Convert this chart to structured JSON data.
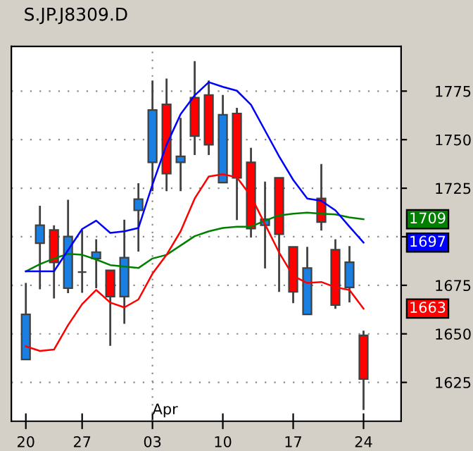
{
  "chart_data": {
    "type": "candlestick",
    "title": "S.JP.J8309.D",
    "categories": [
      "20",
      null,
      null,
      null,
      "27",
      null,
      null,
      null,
      null,
      "03",
      null,
      null,
      null,
      null,
      "10",
      null,
      null,
      null,
      null,
      "17",
      null,
      null,
      null,
      null,
      "24"
    ],
    "ohlc": [
      [
        1636.8,
        1676.2,
        1636.8,
        1660
      ],
      [
        1696.7,
        1716,
        1673,
        1705.9
      ],
      [
        1703.5,
        1705.9,
        1668.2,
        1686.8
      ],
      [
        1673.5,
        1719,
        1671,
        1700.1
      ],
      [
        1681.8,
        1703.5,
        1671.1,
        1681.8
      ],
      [
        1688.8,
        1698.7,
        1673.5,
        1692.1
      ],
      [
        1682.7,
        1682.7,
        1643.8,
        1669.2
      ],
      [
        1669.2,
        1708.8,
        1655.2,
        1689.2
      ],
      [
        1713.6,
        1727.6,
        1692.4,
        1719.4
      ],
      [
        1738.3,
        1780.5,
        1723.5,
        1765.3
      ],
      [
        1768.2,
        1781.5,
        1723.5,
        1732.5
      ],
      [
        1738.3,
        1761.2,
        1723.5,
        1741.4
      ],
      [
        1771.6,
        1790.4,
        1742.1,
        1751.8
      ],
      [
        1773,
        1780.5,
        1742.1,
        1747.4
      ],
      [
        1727.9,
        1773,
        1727.9,
        1762.8
      ],
      [
        1763.5,
        1766.4,
        1708.6,
        1730.3
      ],
      [
        1738.3,
        1745.8,
        1699.6,
        1704.2
      ],
      [
        1705.9,
        1728.4,
        1683.7,
        1709
      ],
      [
        1730.3,
        1730.3,
        1671.6,
        1701.3
      ],
      [
        1694.8,
        1694.8,
        1665.8,
        1671.6
      ],
      [
        1660,
        1694.8,
        1660,
        1683.9
      ],
      [
        1719.7,
        1737.5,
        1703.2,
        1707.6
      ],
      [
        1693.3,
        1698.7,
        1662.9,
        1664.8
      ],
      [
        1673.9,
        1695.2,
        1666.2,
        1686.9
      ],
      [
        1649.2,
        1651.6,
        1610.8,
        1626.7
      ]
    ],
    "colors": [
      "#1a7fe0",
      "#1a7fe0",
      "#ff0000",
      "#1a7fe0",
      "#404040",
      "#1a7fe0",
      "#ff0000",
      "#1a7fe0",
      "#1a7fe0",
      "#1a7fe0",
      "#ff0000",
      "#1a7fe0",
      "#ff0000",
      "#ff0000",
      "#1a7fe0",
      "#ff0000",
      "#ff0000",
      "#1a7fe0",
      "#ff0000",
      "#ff0000",
      "#1a7fe0",
      "#ff0000",
      "#ff0000",
      "#1a7fe0",
      "#ff0000"
    ],
    "series": [
      {
        "type": "line",
        "color": "#008000",
        "values": [
          1682.2,
          1685.9,
          1688.8,
          1691.2,
          1690.7,
          1688.3,
          1685.4,
          1684.7,
          1683.9,
          1688.8,
          1690.7,
          1695.5,
          1700.3,
          1702.8,
          1704.5,
          1705.2,
          1705.2,
          1708.3,
          1711,
          1711.9,
          1712.4,
          1711.9,
          1711.5,
          1710,
          1709
        ]
      },
      {
        "type": "line",
        "color": "#0000ff",
        "values": [
          1682.2,
          1682.2,
          1682.2,
          1693.1,
          1704,
          1708.3,
          1702,
          1702.8,
          1704.5,
          1726.9,
          1747.4,
          1763.1,
          1772.8,
          1779.6,
          1777.2,
          1775.2,
          1768,
          1754.7,
          1741.4,
          1729.3,
          1719.7,
          1718.5,
          1713.6,
          1705.2,
          1697
        ]
      },
      {
        "type": "line",
        "color": "#ff0000",
        "values": [
          1643.6,
          1641.2,
          1641.9,
          1654.5,
          1665.3,
          1672.6,
          1666.1,
          1663.6,
          1667.7,
          1681,
          1690.7,
          1702.8,
          1719.7,
          1731,
          1732.2,
          1730.6,
          1720.9,
          1706.4,
          1691.9,
          1679.8,
          1676.2,
          1676.7,
          1674,
          1672.6,
          1663
        ]
      }
    ],
    "ylim": [
      1605,
      1798
    ],
    "yticks": [
      1625,
      1650,
      1675,
      {
        "value": 1700,
        "label": null
      },
      1725,
      1750,
      1775
    ],
    "grid": "y",
    "ref_lines": [
      {
        "axis": "x",
        "value": "03",
        "line_style": "dotted",
        "color": "#888888"
      }
    ],
    "annotations": [
      "Apr",
      "1709",
      "1697",
      "1663"
    ]
  }
}
